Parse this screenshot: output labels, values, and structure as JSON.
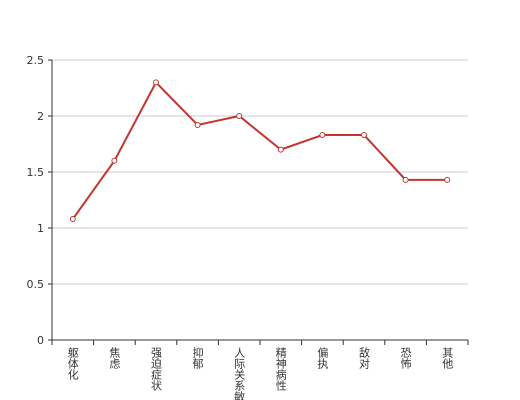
{
  "chart_data": {
    "type": "line",
    "categories": [
      "躯体化",
      "焦虑",
      "强迫症状",
      "抑郁",
      "人际关系敏感",
      "精神病性",
      "偏执",
      "敌对",
      "恐怖",
      "其他"
    ],
    "values": [
      1.08,
      1.6,
      2.3,
      1.92,
      2.0,
      1.7,
      1.83,
      1.83,
      1.43,
      1.43
    ],
    "color": "#c23531",
    "ylim": [
      0,
      2.5
    ],
    "yticks": [
      0,
      0.5,
      1,
      1.5,
      2,
      2.5
    ],
    "grid": true
  }
}
